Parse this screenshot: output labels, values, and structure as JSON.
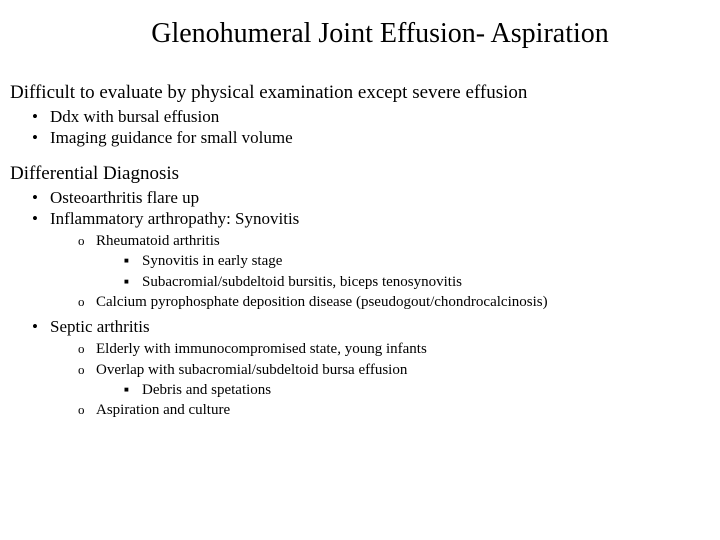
{
  "title": "Glenohumeral Joint Effusion- Aspiration",
  "section1": {
    "heading": "Difficult to evaluate by physical examination except severe effusion",
    "items": [
      "Ddx with bursal effusion",
      "Imaging guidance for small volume"
    ]
  },
  "section2": {
    "heading": "Differential Diagnosis",
    "items": [
      {
        "text": "Osteoarthritis flare up"
      },
      {
        "text": "Inflammatory arthropathy: Synovitis",
        "sub": [
          {
            "text": "Rheumatoid arthritis",
            "sub": [
              "Synovitis in early stage",
              "Subacromial/subdeltoid bursitis, biceps tenosynovitis"
            ]
          },
          {
            "text": "Calcium pyrophosphate deposition disease (pseudogout/chondrocalcinosis)"
          }
        ]
      },
      {
        "text": "Septic arthritis",
        "sub": [
          {
            "text": "Elderly with immunocompromised state, young infants"
          },
          {
            "text": "Overlap with subacromial/subdeltoid bursa effusion",
            "sub": [
              "Debris and spetations"
            ]
          },
          {
            "text": "Aspiration and culture"
          }
        ]
      }
    ]
  },
  "colors": {
    "background": "#ffffff",
    "text": "#000000"
  },
  "typography": {
    "font_family": "Times New Roman",
    "title_fontsize": 28,
    "section_fontsize": 19,
    "level1_fontsize": 17,
    "level2_fontsize": 15,
    "level3_fontsize": 15
  }
}
